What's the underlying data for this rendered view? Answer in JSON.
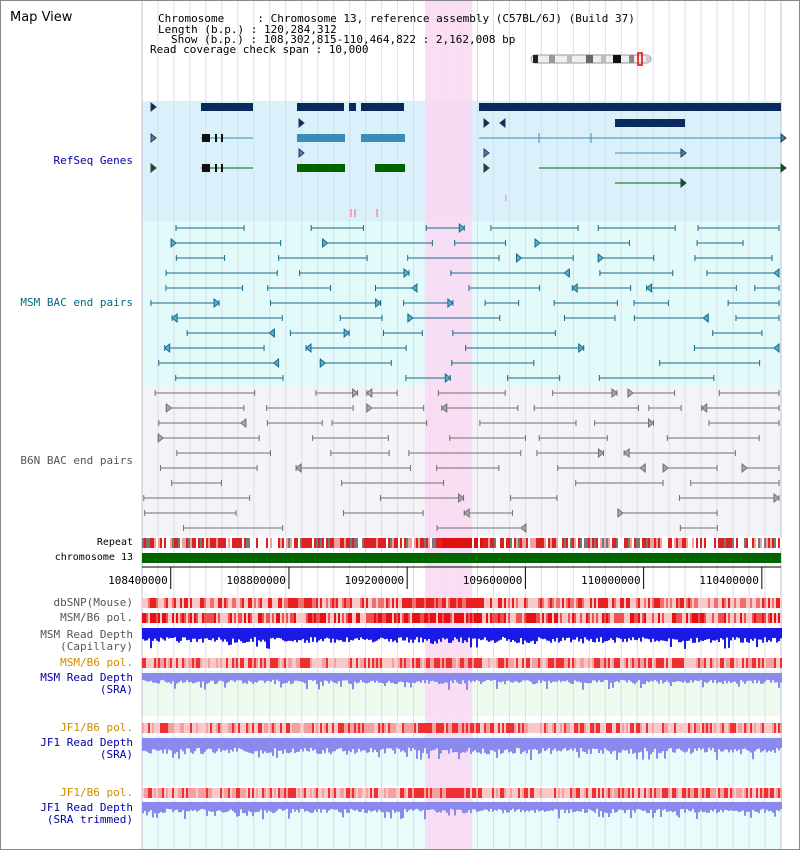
{
  "header": {
    "title": "Map View",
    "info_lines": [
      "Chromosome     : Chromosome 13, reference assembly (C57BL/6J) (Build 37)",
      "Length (b.p.) : 120,284,312",
      "Show (b.p.) : 108,302,815-110,464,822 : 2,162,008 bp",
      "Read coverage check span : 10,000"
    ]
  },
  "tracks": {
    "refseq": "RefSeq Genes",
    "msm_bac": "MSM BAC end pairs",
    "b6n_bac": "B6N BAC end pairs",
    "repeat": "Repeat",
    "chromosome": "chromosome 13",
    "dbsnp": "dbSNP(Mouse)",
    "msm_b6_pol_1": "MSM/B6 pol.",
    "msm_read_depth_cap": "MSM Read Depth\n(Capillary)",
    "msm_b6_pol_2": "MSM/B6 pol.",
    "msm_read_depth_sra": "MSM Read Depth\n(SRA)",
    "jf1_b6_pol_1": "JF1/B6 pol.",
    "jf1_read_depth_sra": "JF1 Read Depth\n(SRA)",
    "jf1_b6_pol_2": "JF1/B6 pol.",
    "jf1_read_depth_trimmed": "JF1 Read Depth\n(SRA trimmed)"
  },
  "axis": {
    "ticks": [
      "108400000",
      "108800000",
      "109200000",
      "109600000",
      "110000000",
      "110400000"
    ],
    "range": [
      108302815,
      110464822
    ]
  },
  "highlight": {
    "start": 109260000,
    "end": 109420000
  },
  "colors": {
    "refseq_bg": "#daf0fa",
    "msm_bg": "#e2fafa",
    "b6n_bg": "#f4f4f8",
    "highlight": "#f9d8f2",
    "gene_dark": "#0a2a5e",
    "gene_mid": "#3a8bb8",
    "gene_green": "#006400",
    "msm_line": "#1a6a8a",
    "b6n_line": "#707070",
    "chromosome_bar": "#006400",
    "depth_capillary": "#1a1ae6",
    "depth_sra": "#8a8aee",
    "label_blue": "#0000aa",
    "label_teal": "#006c84",
    "label_grey": "#555555",
    "label_orange": "#d08a00"
  }
}
